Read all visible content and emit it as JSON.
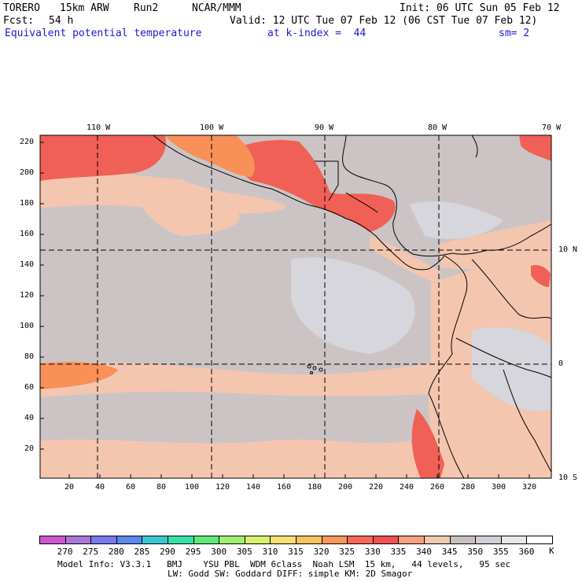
{
  "header": {
    "model": "TORERO",
    "resolution": "15km ARW",
    "run": "Run2",
    "org": "NCAR/MMM",
    "init": "Init: 06 UTC Sun 05 Feb 12",
    "fcst_label": "Fcst:",
    "fcst_value": "54 h",
    "valid": "Valid: 12 UTC Tue 07 Feb 12 (06 CST Tue 07 Feb 12)",
    "field": "Equivalent potential temperature",
    "level": "at k-index =  44",
    "smoothing": "sm= 2"
  },
  "map": {
    "top_lon_labels": [
      "110 W",
      "100 W",
      "90 W",
      "80 W",
      "70 W"
    ],
    "right_lat_labels": [
      "10 N",
      "0",
      "10 S"
    ],
    "left_axis_ticks": [
      "220",
      "200",
      "180",
      "160",
      "140",
      "120",
      "100",
      "80",
      "60",
      "40",
      "20"
    ],
    "bottom_axis_ticks": [
      "20",
      "40",
      "60",
      "80",
      "100",
      "120",
      "140",
      "160",
      "180",
      "200",
      "220",
      "240",
      "260",
      "280",
      "300",
      "320"
    ]
  },
  "colorbar": {
    "levels": [
      "270",
      "275",
      "280",
      "285",
      "290",
      "295",
      "300",
      "305",
      "310",
      "315",
      "320",
      "325",
      "330",
      "335",
      "340",
      "345",
      "350",
      "355",
      "360"
    ],
    "unit": "K",
    "colors": [
      "#d055d0",
      "#a878d8",
      "#7a78f0",
      "#5c88f0",
      "#38c8d0",
      "#38e0a8",
      "#60e878",
      "#a0f070",
      "#d8f070",
      "#f8e070",
      "#f8c060",
      "#f89858",
      "#f86858",
      "#f05050",
      "#f8a080",
      "#f0c8b0",
      "#c8c0c0",
      "#d0d0d8",
      "#e8e8e8",
      "#ffffff"
    ]
  },
  "footer": {
    "line1": "Model Info: V3.3.1   BMJ    YSU PBL  WDM 6class  Noah LSM  15 km,   44 levels,   95 sec",
    "line2": "LW: Godd SW: Goddard DIFF: simple KM: 2D Smagor"
  }
}
